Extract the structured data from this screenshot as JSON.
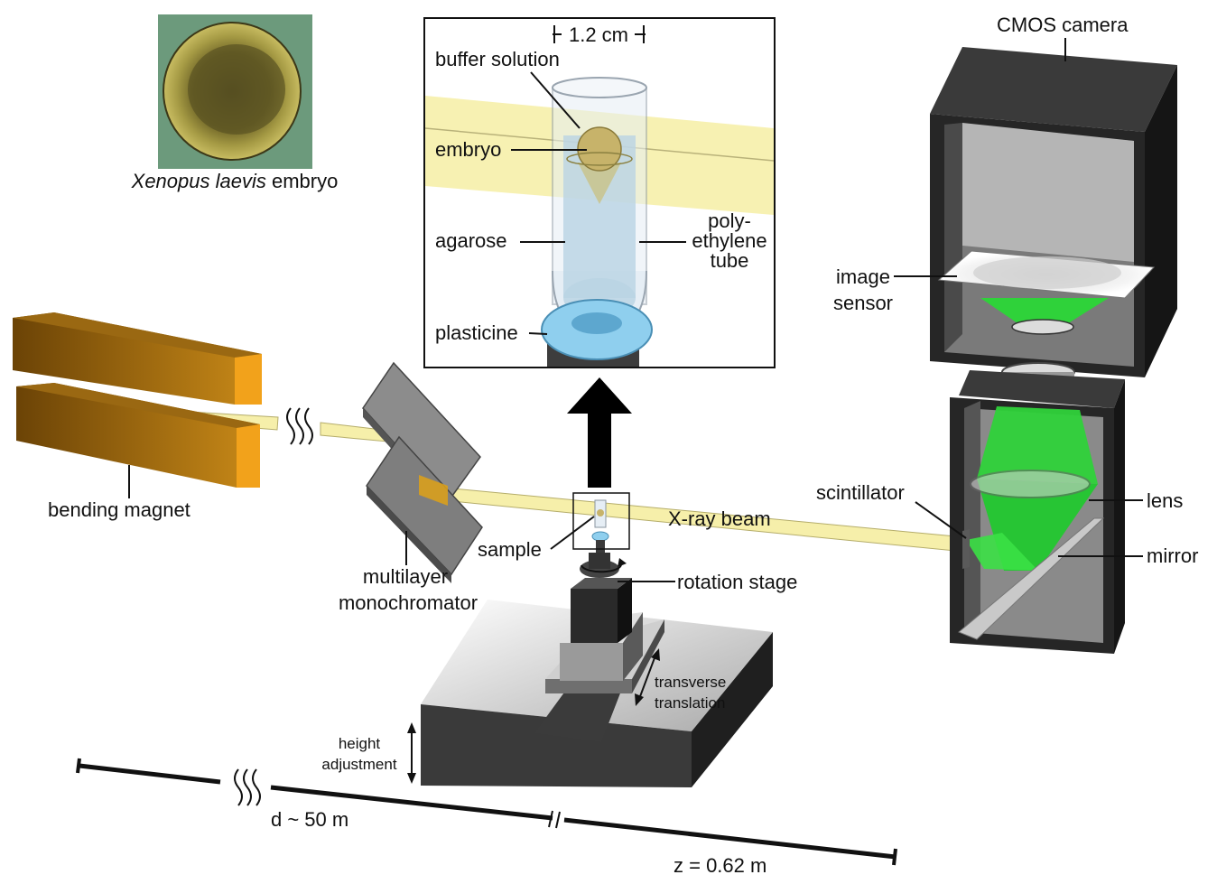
{
  "labels": {
    "species_genus": "Xenopus laevis",
    "species_suffix": " embryo",
    "scale_bar": "1.2 cm",
    "buffer_solution": "buffer solution",
    "embryo": "embryo",
    "agarose": "agarose",
    "tube_line1": "poly-",
    "tube_line2": "ethylene",
    "tube_line3": "tube",
    "plasticine": "plasticine",
    "cmos_camera": "CMOS camera",
    "image_sensor_line1": "image",
    "image_sensor_line2": "sensor",
    "scintillator": "scintillator",
    "lens": "lens",
    "mirror": "mirror",
    "bending_magnet": "bending magnet",
    "monochromator_line1": "multilayer",
    "monochromator_line2": "monochromator",
    "xray_beam": "X-ray beam",
    "sample": "sample",
    "rotation_stage": "rotation stage",
    "transverse_line1": "transverse",
    "transverse_line2": "translation",
    "height_line1": "height",
    "height_line2": "adjustment",
    "distance_d": "d ~ 50 m",
    "distance_z": "z = 0.62 m"
  },
  "colors": {
    "beam": "#f6efaa",
    "magnet": "#c98a18",
    "scintillation_light": "#2fd23a",
    "plasticine": "#8fcfee",
    "camera_body": "#2e2e2e"
  }
}
